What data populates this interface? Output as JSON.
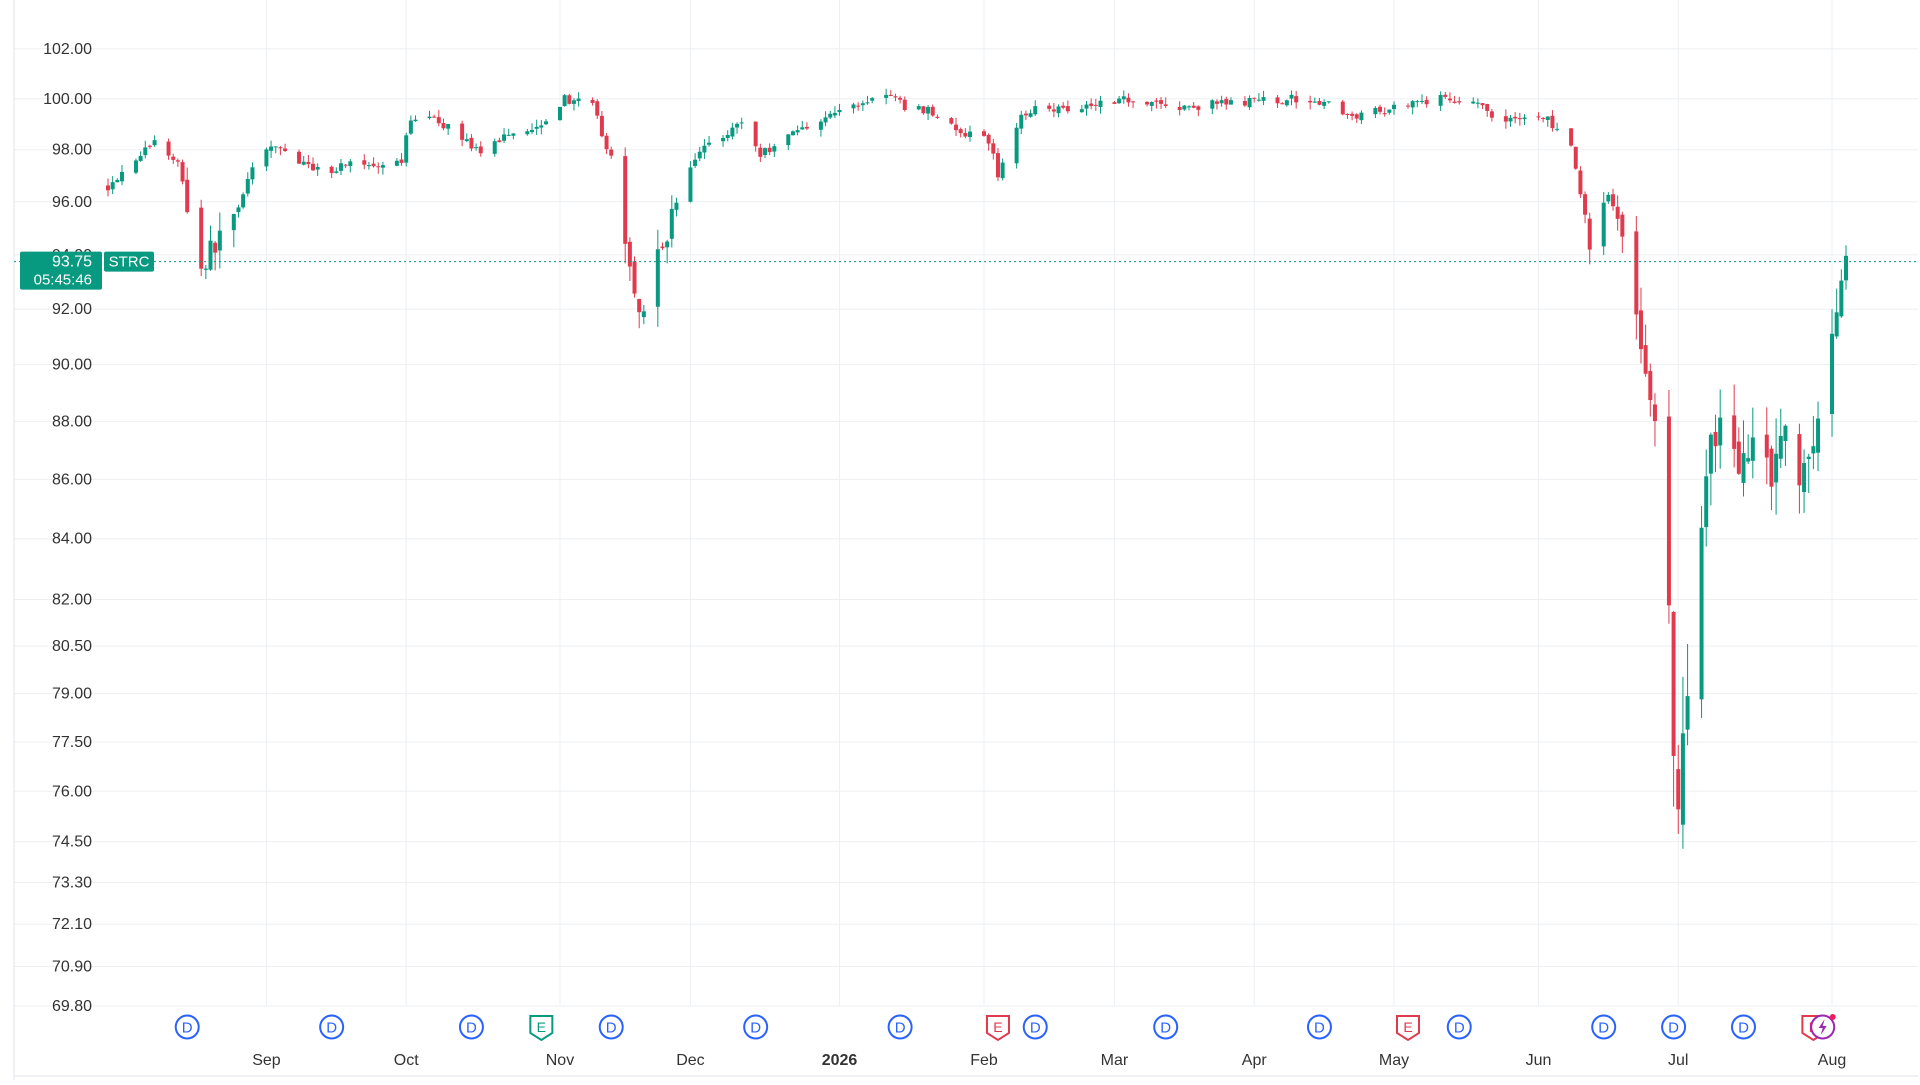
{
  "symbol": "STRC",
  "last_price": "93.75",
  "countdown": "05:45:46",
  "colors": {
    "up": "#089981",
    "down": "#e03a4e",
    "grid": "#eeeff2",
    "axis_text": "#333333",
    "price_label_bg": "#089981",
    "dividend": "#2962ff",
    "earnings_red": "#e03a4e",
    "earnings_green": "#089981"
  },
  "chart_data": {
    "type": "candlestick",
    "scale": "log",
    "ylim": [
      69.8,
      102.6
    ],
    "y_ticks": [
      "102.00",
      "100.00",
      "98.00",
      "96.00",
      "94.00",
      "92.00",
      "90.00",
      "88.00",
      "86.00",
      "84.00",
      "82.00",
      "80.50",
      "79.00",
      "77.50",
      "76.00",
      "74.50",
      "73.30",
      "72.10",
      "70.90",
      "69.80"
    ],
    "x_labels": [
      {
        "label": "Sep",
        "date": "2025-09-01",
        "bold": false
      },
      {
        "label": "Oct",
        "date": "2025-10-01",
        "bold": false
      },
      {
        "label": "Nov",
        "date": "2025-11-03",
        "bold": false
      },
      {
        "label": "Dec",
        "date": "2025-12-01",
        "bold": false
      },
      {
        "label": "2026",
        "date": "2026-01-02",
        "bold": true
      },
      {
        "label": "Feb",
        "date": "2026-02-02",
        "bold": false
      },
      {
        "label": "Mar",
        "date": "2026-03-02",
        "bold": false
      },
      {
        "label": "Apr",
        "date": "2026-04-01",
        "bold": false
      },
      {
        "label": "May",
        "date": "2026-05-01",
        "bold": false
      },
      {
        "label": "Jun",
        "date": "2026-06-01",
        "bold": false
      },
      {
        "label": "Jul",
        "date": "2026-07-01",
        "bold": false
      },
      {
        "label": "Aug",
        "date": "2026-08-03",
        "bold": false
      }
    ],
    "events": [
      {
        "type": "D",
        "date": "2025-08-15"
      },
      {
        "type": "D",
        "date": "2025-09-15"
      },
      {
        "type": "D",
        "date": "2025-10-15"
      },
      {
        "type": "E",
        "date": "2025-10-30",
        "color": "green"
      },
      {
        "type": "D",
        "date": "2025-11-14"
      },
      {
        "type": "D",
        "date": "2025-12-15"
      },
      {
        "type": "D",
        "date": "2026-01-15"
      },
      {
        "type": "E",
        "date": "2026-02-05",
        "color": "red"
      },
      {
        "type": "D",
        "date": "2026-02-13"
      },
      {
        "type": "D",
        "date": "2026-03-13"
      },
      {
        "type": "D",
        "date": "2026-04-15"
      },
      {
        "type": "E",
        "date": "2026-05-04",
        "color": "red"
      },
      {
        "type": "D",
        "date": "2026-05-15"
      },
      {
        "type": "D",
        "date": "2026-06-15"
      },
      {
        "type": "D",
        "date": "2026-06-30"
      },
      {
        "type": "D",
        "date": "2026-07-15"
      },
      {
        "type": "E",
        "date": "2026-07-30",
        "color": "red"
      },
      {
        "type": "S",
        "date": "2026-08-01"
      }
    ],
    "anchors": [
      [
        "2025-07-29",
        96.6
      ],
      [
        "2025-08-04",
        97.7
      ],
      [
        "2025-08-08",
        98.3
      ],
      [
        "2025-08-13",
        97.5
      ],
      [
        "2025-08-18",
        93.5
      ],
      [
        "2025-08-21",
        94.4
      ],
      [
        "2025-08-25",
        95.5
      ],
      [
        "2025-08-29",
        97.3
      ],
      [
        "2025-09-03",
        98.2
      ],
      [
        "2025-09-09",
        97.4
      ],
      [
        "2025-09-15",
        97.2
      ],
      [
        "2025-09-19",
        97.6
      ],
      [
        "2025-09-25",
        97.2
      ],
      [
        "2025-09-30",
        97.5
      ],
      [
        "2025-10-02",
        99.3
      ],
      [
        "2025-10-08",
        99.1
      ],
      [
        "2025-10-14",
        98.4
      ],
      [
        "2025-10-17",
        97.7
      ],
      [
        "2025-10-22",
        98.6
      ],
      [
        "2025-10-29",
        98.9
      ],
      [
        "2025-11-04",
        100.0
      ],
      [
        "2025-11-10",
        99.7
      ],
      [
        "2025-11-14",
        97.6
      ],
      [
        "2025-11-17",
        94.3
      ],
      [
        "2025-11-20",
        92.0
      ],
      [
        "2025-11-24",
        93.8
      ],
      [
        "2025-11-28",
        96.0
      ],
      [
        "2025-12-03",
        98.0
      ],
      [
        "2025-12-08",
        98.6
      ],
      [
        "2025-12-12",
        99.1
      ],
      [
        "2025-12-16",
        97.8
      ],
      [
        "2025-12-22",
        98.6
      ],
      [
        "2025-12-30",
        99.3
      ],
      [
        "2026-01-06",
        99.8
      ],
      [
        "2026-01-12",
        100.2
      ],
      [
        "2026-01-16",
        99.7
      ],
      [
        "2026-01-22",
        99.5
      ],
      [
        "2026-01-28",
        98.6
      ],
      [
        "2026-02-03",
        98.4
      ],
      [
        "2026-02-05",
        97.0
      ],
      [
        "2026-02-09",
        99.0
      ],
      [
        "2026-02-13",
        99.8
      ],
      [
        "2026-02-18",
        99.6
      ],
      [
        "2026-02-25",
        99.8
      ],
      [
        "2026-03-03",
        100.0
      ],
      [
        "2026-03-10",
        99.9
      ],
      [
        "2026-03-16",
        99.6
      ],
      [
        "2026-03-24",
        99.8
      ],
      [
        "2026-04-01",
        99.9
      ],
      [
        "2026-04-10",
        100.0
      ],
      [
        "2026-04-16",
        99.9
      ],
      [
        "2026-04-20",
        99.3
      ],
      [
        "2026-04-28",
        99.5
      ],
      [
        "2026-05-05",
        99.9
      ],
      [
        "2026-05-12",
        100.0
      ],
      [
        "2026-05-19",
        99.9
      ],
      [
        "2026-05-22",
        99.1
      ],
      [
        "2026-05-28",
        99.3
      ],
      [
        "2026-06-03",
        99.2
      ],
      [
        "2026-06-08",
        98.0
      ],
      [
        "2026-06-12",
        94.5
      ],
      [
        "2026-06-16",
        96.3
      ],
      [
        "2026-06-19",
        95.0
      ],
      [
        "2026-06-23",
        90.5
      ],
      [
        "2026-06-26",
        87.8
      ],
      [
        "2026-06-29",
        82.0
      ],
      [
        "2026-07-01",
        74.2
      ],
      [
        "2026-07-03",
        80.0
      ],
      [
        "2026-07-07",
        86.5
      ],
      [
        "2026-07-10",
        88.4
      ],
      [
        "2026-07-14",
        86.0
      ],
      [
        "2026-07-17",
        88.0
      ],
      [
        "2026-07-21",
        86.5
      ],
      [
        "2026-07-24",
        87.7
      ],
      [
        "2026-07-28",
        86.0
      ],
      [
        "2026-07-31",
        88.2
      ],
      [
        "2026-08-04",
        92.0
      ],
      [
        "2026-08-06",
        93.75
      ]
    ]
  }
}
